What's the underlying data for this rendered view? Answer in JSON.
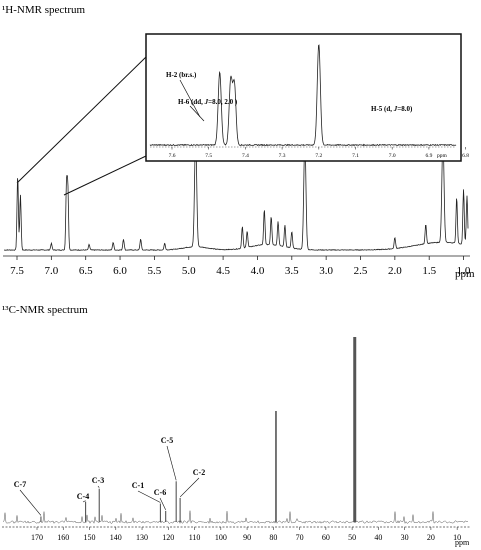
{
  "chart_data": [
    {
      "type": "line",
      "title": "¹H-NMR spectrum",
      "xlabel": "ppm",
      "ylabel": "",
      "xlim": [
        7.7,
        0.5
      ],
      "x_reversed": true,
      "grid": false,
      "tick_labels": [
        "7.5",
        "7.0",
        "6.5",
        "6.0",
        "5.5",
        "5.0",
        "4.5",
        "4.0",
        "3.5",
        "3.0",
        "2.5",
        "2.0",
        "1.5",
        "1.0"
      ],
      "ticks": [
        7.5,
        7.0,
        6.5,
        6.0,
        5.5,
        5.0,
        4.5,
        4.0,
        3.5,
        3.0,
        2.5,
        2.0,
        1.5,
        1.0
      ],
      "peaks": [
        {
          "x": 7.49,
          "h": 0.68
        },
        {
          "x": 7.45,
          "h": 0.5
        },
        {
          "x": 7.0,
          "h": 0.06
        },
        {
          "x": 6.78,
          "h": 0.58
        },
        {
          "x": 6.76,
          "h": 0.55
        },
        {
          "x": 6.45,
          "h": 0.05
        },
        {
          "x": 6.1,
          "h": 0.07
        },
        {
          "x": 5.95,
          "h": 0.1
        },
        {
          "x": 5.7,
          "h": 0.1
        },
        {
          "x": 5.35,
          "h": 0.06
        },
        {
          "x": 4.9,
          "h": 1.0
        },
        {
          "x": 4.22,
          "h": 0.2
        },
        {
          "x": 4.15,
          "h": 0.15
        },
        {
          "x": 3.9,
          "h": 0.32
        },
        {
          "x": 3.8,
          "h": 0.26
        },
        {
          "x": 3.7,
          "h": 0.22
        },
        {
          "x": 3.6,
          "h": 0.2
        },
        {
          "x": 3.5,
          "h": 0.15
        },
        {
          "x": 3.31,
          "h": 1.0
        },
        {
          "x": 2.0,
          "h": 0.1
        },
        {
          "x": 1.55,
          "h": 0.18
        },
        {
          "x": 1.3,
          "h": 0.95
        },
        {
          "x": 1.1,
          "h": 0.42
        },
        {
          "x": 1.0,
          "h": 0.5
        },
        {
          "x": 0.95,
          "h": 0.45
        },
        {
          "x": 0.88,
          "h": 0.5
        },
        {
          "x": 0.82,
          "h": 0.4
        }
      ],
      "inset": {
        "tick_labels": [
          "7.6",
          "7.5",
          "7.4",
          "7.3",
          "7.2",
          "7.1",
          "7.0",
          "6.9",
          "6.8"
        ],
        "ticks": [
          7.6,
          7.5,
          7.4,
          7.3,
          7.2,
          7.1,
          7.0,
          6.9,
          6.8
        ],
        "xlabel": "ppm",
        "xlim": [
          7.65,
          6.74
        ],
        "peaks": [
          {
            "x": 7.47,
            "h": 0.72
          },
          {
            "x": 7.44,
            "h": 0.64
          },
          {
            "x": 7.43,
            "h": 0.6
          },
          {
            "x": 7.2,
            "h": 1.0
          },
          {
            "x": 6.79,
            "h": 0.52
          },
          {
            "x": 6.77,
            "h": 0.52
          }
        ],
        "annotations": [
          {
            "text": "H-2 (br.s.)",
            "x": 7.47
          },
          {
            "text": "H-6 (dd, J=8.0, 2.0 )",
            "x": 7.43
          },
          {
            "text": "H-5 (d, J=8.0)",
            "x": 6.78
          }
        ]
      }
    },
    {
      "type": "line",
      "title": "¹³C-NMR spectrum",
      "xlabel": "ppm",
      "ylabel": "",
      "xlim": [
        177,
        2
      ],
      "x_reversed": true,
      "grid": false,
      "tick_labels": [
        "170",
        "160",
        "150",
        "140",
        "130",
        "120",
        "110",
        "100",
        "90",
        "80",
        "70",
        "60",
        "50",
        "40",
        "30",
        "20",
        "10"
      ],
      "ticks": [
        170,
        160,
        150,
        140,
        130,
        120,
        110,
        100,
        90,
        80,
        70,
        60,
        50,
        40,
        30,
        20,
        10
      ],
      "peaks": [
        {
          "x": 168.5,
          "h": 0.03,
          "label": "C-7"
        },
        {
          "x": 151.5,
          "h": 0.11,
          "label": "C-4"
        },
        {
          "x": 146.3,
          "h": 0.18,
          "label": "C-3"
        },
        {
          "x": 123.0,
          "h": 0.1,
          "label": "C-1"
        },
        {
          "x": 121.0,
          "h": 0.06,
          "label": "C-6"
        },
        {
          "x": 117.0,
          "h": 0.22,
          "label": "C-5"
        },
        {
          "x": 115.5,
          "h": 0.13,
          "label": "C-2"
        },
        {
          "x": 79.0,
          "h": 0.6
        },
        {
          "x": 49.0,
          "h": 1.0
        }
      ]
    }
  ]
}
